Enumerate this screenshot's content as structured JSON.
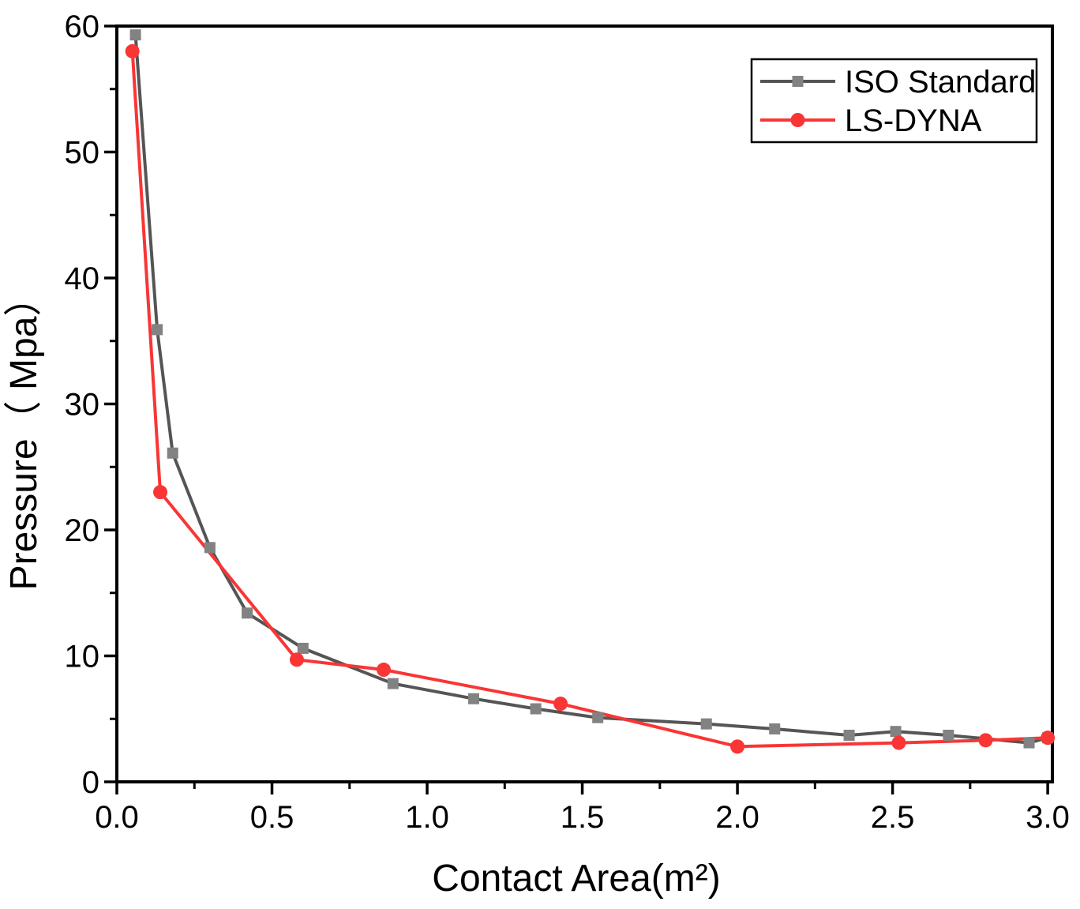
{
  "chart_data": {
    "type": "line",
    "title": "",
    "xlabel": "Contact Area(m²)",
    "ylabel": "Pressure（ Mpa）",
    "xlim": [
      0,
      3.015
    ],
    "ylim": [
      0,
      60
    ],
    "x_tick_values": [
      0.0,
      0.5,
      1.0,
      1.5,
      2.0,
      2.5,
      3.0
    ],
    "x_tick_labels": [
      "0.0",
      "0.5",
      "1.0",
      "1.5",
      "2.0",
      "2.5",
      "3.0"
    ],
    "x_minor_step": 0.25,
    "y_tick_values": [
      0,
      10,
      20,
      30,
      40,
      50,
      60
    ],
    "y_tick_labels": [
      "0",
      "10",
      "20",
      "30",
      "40",
      "50",
      "60"
    ],
    "y_minor_step": 5,
    "grid": false,
    "frame": "full-box",
    "legend_position": "top-right",
    "axis_color": "#000000",
    "series": [
      {
        "name": "ISO Standard",
        "marker": "square",
        "line_color": "#555555",
        "marker_color": "#828282",
        "points": [
          [
            0.06,
            59.3
          ],
          [
            0.13,
            35.9
          ],
          [
            0.18,
            26.1
          ],
          [
            0.3,
            18.6
          ],
          [
            0.42,
            13.4
          ],
          [
            0.6,
            10.6
          ],
          [
            0.89,
            7.8
          ],
          [
            1.15,
            6.6
          ],
          [
            1.35,
            5.8
          ],
          [
            1.55,
            5.1
          ],
          [
            1.9,
            4.6
          ],
          [
            2.12,
            4.2
          ],
          [
            2.36,
            3.7
          ],
          [
            2.51,
            4.0
          ],
          [
            2.68,
            3.7
          ],
          [
            2.94,
            3.1
          ],
          [
            3.0,
            3.5
          ]
        ]
      },
      {
        "name": "LS-DYNA",
        "marker": "circle",
        "line_color": "#f93535",
        "marker_color": "#f93535",
        "points": [
          [
            0.05,
            58.0
          ],
          [
            0.14,
            23.0
          ],
          [
            0.58,
            9.7
          ],
          [
            0.86,
            8.9
          ],
          [
            1.43,
            6.2
          ],
          [
            2.0,
            2.8
          ],
          [
            2.52,
            3.1
          ],
          [
            2.8,
            3.3
          ],
          [
            3.0,
            3.5
          ]
        ]
      }
    ]
  }
}
